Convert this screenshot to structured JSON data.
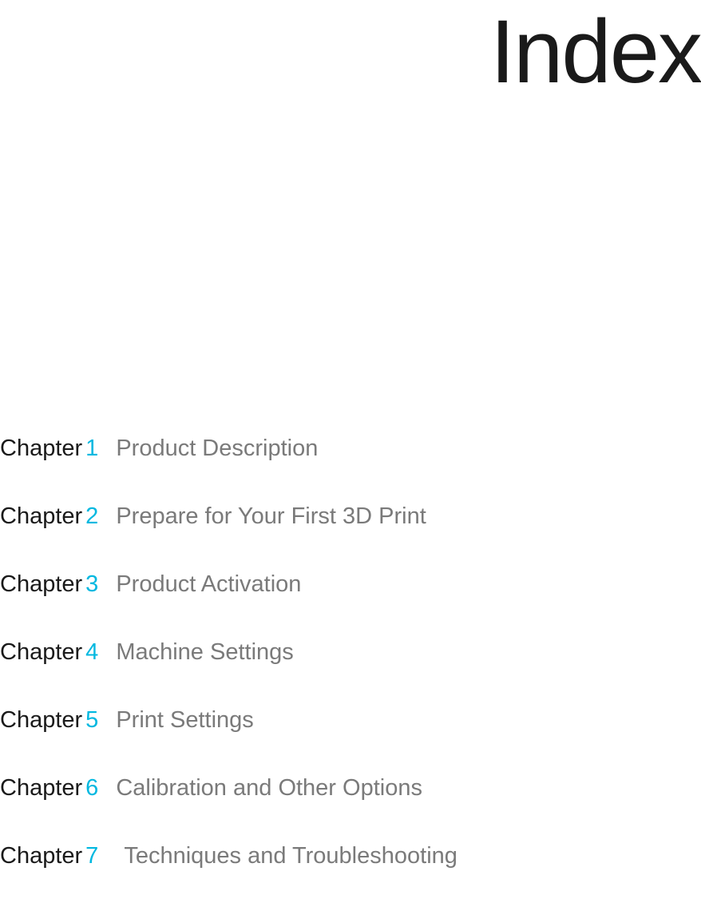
{
  "page_title": "Index",
  "colors": {
    "title": "#1a1a1a",
    "chapter_label": "#1a1a1a",
    "chapter_number": "#00b8e0",
    "chapter_title": "#7a7a7a",
    "background": "#ffffff"
  },
  "typography": {
    "title_fontsize": 112,
    "chapter_fontsize": 29,
    "font_family": "Arial"
  },
  "chapters": [
    {
      "label": "Chapter",
      "number": "1",
      "title": "Product Description"
    },
    {
      "label": "Chapter",
      "number": "2",
      "title": "Prepare for Your First 3D Print"
    },
    {
      "label": "Chapter",
      "number": "3",
      "title": "Product Activation"
    },
    {
      "label": "Chapter",
      "number": "4",
      "title": "Machine Settings"
    },
    {
      "label": "Chapter",
      "number": "5",
      "title": "Print Settings"
    },
    {
      "label": "Chapter",
      "number": "6",
      "title": "Calibration and Other Options"
    },
    {
      "label": "Chapter",
      "number": "7",
      "title": "Techniques and Troubleshooting"
    }
  ]
}
